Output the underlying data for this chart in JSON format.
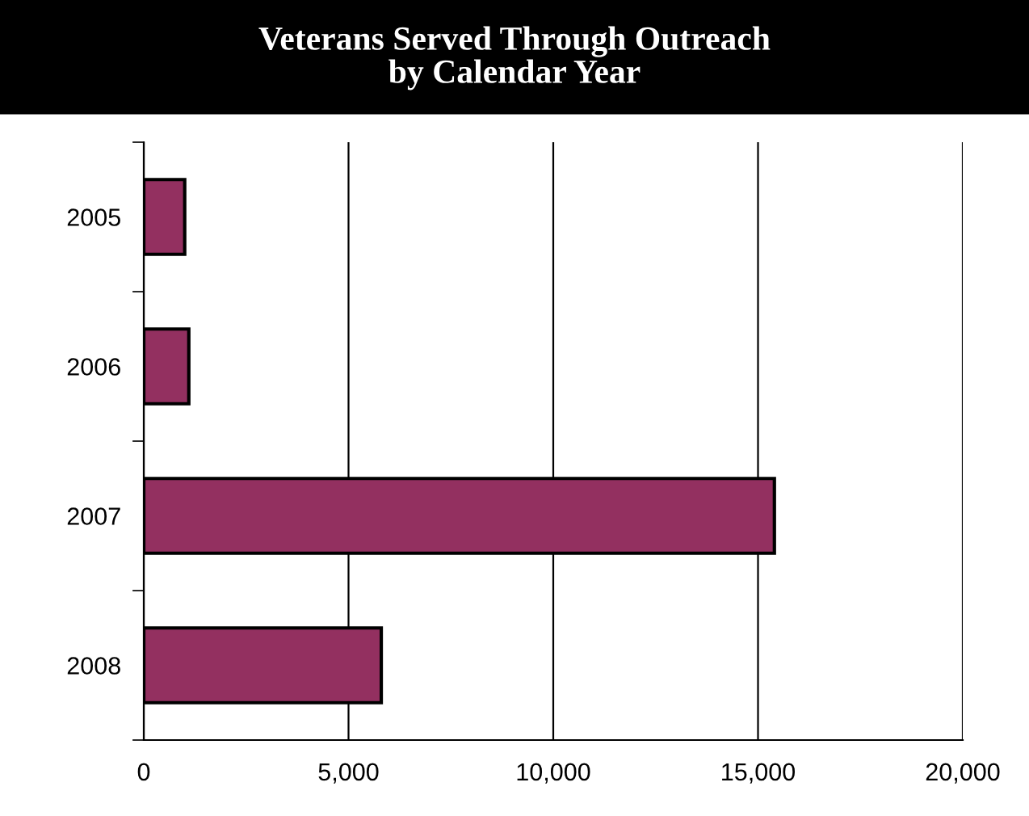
{
  "chart_data": {
    "type": "bar",
    "orientation": "horizontal",
    "title": "Veterans Served Through Outreach\nby Calendar Year",
    "categories": [
      "2005",
      "2006",
      "2007",
      "2008"
    ],
    "values": [
      1000,
      1100,
      15400,
      5800
    ],
    "color": "#933060",
    "xlim": [
      0,
      20000
    ],
    "xticks": [
      {
        "value": 0,
        "label": "0"
      },
      {
        "value": 5000,
        "label": "5,000"
      },
      {
        "value": 10000,
        "label": "10,000"
      },
      {
        "value": 15000,
        "label": "15,000"
      },
      {
        "value": 20000,
        "label": "20,000"
      }
    ],
    "grid": "x",
    "legend": false
  }
}
